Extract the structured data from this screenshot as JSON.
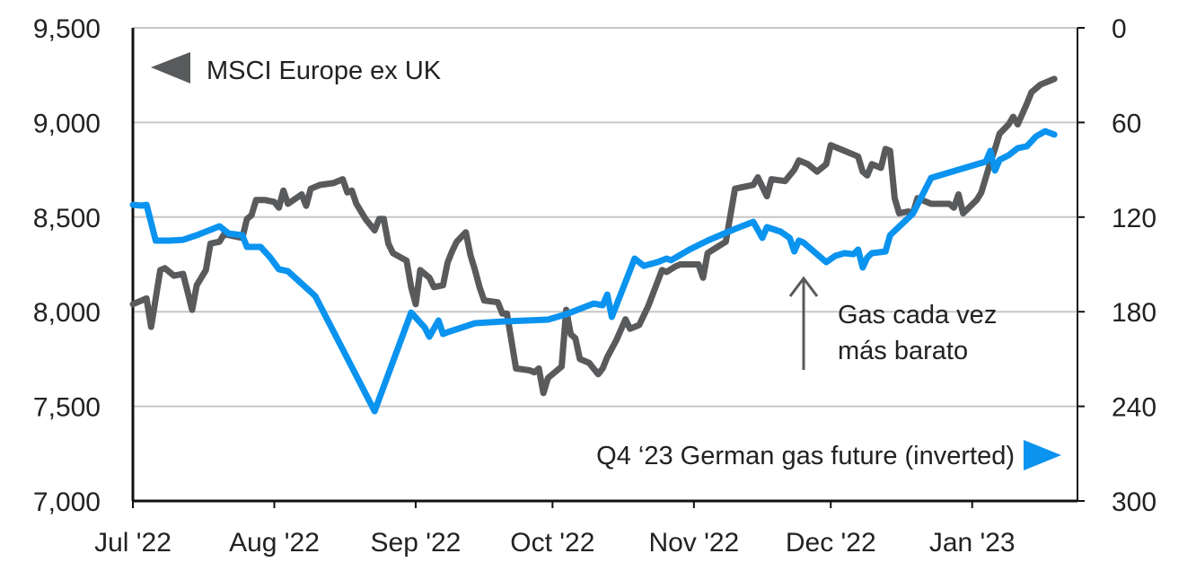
{
  "chart_data": {
    "type": "line",
    "title": "",
    "xlabel": "",
    "x_unit": "days since 1 Jul 2022",
    "x_ticks": [
      {
        "day": 0,
        "label": "Jul '22"
      },
      {
        "day": 31,
        "label": "Aug '22"
      },
      {
        "day": 62,
        "label": "Sep '22"
      },
      {
        "day": 92,
        "label": "Oct '22"
      },
      {
        "day": 123,
        "label": "Nov '22"
      },
      {
        "day": 153,
        "label": "Dec '22"
      },
      {
        "day": 184,
        "label": "Jan '23"
      }
    ],
    "xlim": [
      0,
      207
    ],
    "y_left": {
      "ylim": [
        7000,
        9500
      ],
      "ticks": [
        "7,000",
        "7,500",
        "8,000",
        "8,500",
        "9,000",
        "9,500"
      ],
      "tick_values": [
        7000,
        7500,
        8000,
        8500,
        9000,
        9500
      ]
    },
    "y_right": {
      "ylim": [
        0,
        300
      ],
      "inverted": true,
      "ticks": [
        "0",
        "60",
        "120",
        "180",
        "240",
        "300"
      ],
      "tick_values": [
        0,
        60,
        120,
        180,
        240,
        300
      ]
    },
    "grid": true,
    "series": [
      {
        "name": "MSCI Europe ex UK",
        "axis": "left",
        "color": "#595a5c",
        "points": [
          [
            0,
            8040
          ],
          [
            3,
            8070
          ],
          [
            4,
            7920
          ],
          [
            6,
            8220
          ],
          [
            7,
            8230
          ],
          [
            9,
            8190
          ],
          [
            11,
            8200
          ],
          [
            13,
            8010
          ],
          [
            14,
            8140
          ],
          [
            16,
            8220
          ],
          [
            17,
            8360
          ],
          [
            19,
            8370
          ],
          [
            20,
            8410
          ],
          [
            22,
            8400
          ],
          [
            24,
            8390
          ],
          [
            25,
            8490
          ],
          [
            26,
            8510
          ],
          [
            27,
            8590
          ],
          [
            29,
            8590
          ],
          [
            31,
            8580
          ],
          [
            32,
            8550
          ],
          [
            33,
            8640
          ],
          [
            34,
            8570
          ],
          [
            37,
            8620
          ],
          [
            38,
            8560
          ],
          [
            39,
            8650
          ],
          [
            41,
            8670
          ],
          [
            44,
            8680
          ],
          [
            46,
            8700
          ],
          [
            47,
            8630
          ],
          [
            48,
            8640
          ],
          [
            49,
            8570
          ],
          [
            51,
            8490
          ],
          [
            53,
            8430
          ],
          [
            54,
            8490
          ],
          [
            55,
            8490
          ],
          [
            56,
            8360
          ],
          [
            57,
            8310
          ],
          [
            60,
            8270
          ],
          [
            61,
            8130
          ],
          [
            62,
            8040
          ],
          [
            63,
            8220
          ],
          [
            65,
            8180
          ],
          [
            66,
            8130
          ],
          [
            68,
            8140
          ],
          [
            69,
            8260
          ],
          [
            70,
            8320
          ],
          [
            71,
            8370
          ],
          [
            73,
            8420
          ],
          [
            74,
            8300
          ],
          [
            75,
            8220
          ],
          [
            76,
            8130
          ],
          [
            77,
            8060
          ],
          [
            80,
            8050
          ],
          [
            81,
            7990
          ],
          [
            82,
            7990
          ],
          [
            84,
            7700
          ],
          [
            87,
            7690
          ],
          [
            88,
            7680
          ],
          [
            89,
            7700
          ],
          [
            90,
            7570
          ],
          [
            91,
            7650
          ],
          [
            94,
            7710
          ],
          [
            95,
            8010
          ],
          [
            96,
            7880
          ],
          [
            97,
            7860
          ],
          [
            98,
            7750
          ],
          [
            100,
            7730
          ],
          [
            102,
            7670
          ],
          [
            103,
            7700
          ],
          [
            104,
            7760
          ],
          [
            106,
            7850
          ],
          [
            108,
            7960
          ],
          [
            109,
            7910
          ],
          [
            111,
            7930
          ],
          [
            113,
            8030
          ],
          [
            116,
            8220
          ],
          [
            117,
            8210
          ],
          [
            119,
            8240
          ],
          [
            120,
            8250
          ],
          [
            123,
            8250
          ],
          [
            124,
            8250
          ],
          [
            125,
            8180
          ],
          [
            126,
            8310
          ],
          [
            128,
            8340
          ],
          [
            130,
            8370
          ],
          [
            132,
            8650
          ],
          [
            134,
            8660
          ],
          [
            136,
            8670
          ],
          [
            137,
            8710
          ],
          [
            139,
            8610
          ],
          [
            140,
            8700
          ],
          [
            143,
            8690
          ],
          [
            145,
            8750
          ],
          [
            146,
            8800
          ],
          [
            148,
            8780
          ],
          [
            150,
            8740
          ],
          [
            152,
            8780
          ],
          [
            153,
            8880
          ],
          [
            156,
            8850
          ],
          [
            157,
            8840
          ],
          [
            159,
            8820
          ],
          [
            160,
            8740
          ],
          [
            161,
            8720
          ],
          [
            162,
            8780
          ],
          [
            164,
            8760
          ],
          [
            165,
            8860
          ],
          [
            166,
            8850
          ],
          [
            167,
            8600
          ],
          [
            168,
            8520
          ],
          [
            170,
            8530
          ],
          [
            171,
            8520
          ],
          [
            172,
            8600
          ],
          [
            173,
            8590
          ],
          [
            175,
            8570
          ],
          [
            178,
            8570
          ],
          [
            179,
            8570
          ],
          [
            180,
            8550
          ],
          [
            181,
            8620
          ],
          [
            182,
            8520
          ],
          [
            185,
            8590
          ],
          [
            186,
            8630
          ],
          [
            188,
            8790
          ],
          [
            189,
            8860
          ],
          [
            190,
            8940
          ],
          [
            192,
            8990
          ],
          [
            193,
            9030
          ],
          [
            194,
            8990
          ],
          [
            196,
            9100
          ],
          [
            197,
            9160
          ],
          [
            199,
            9200
          ],
          [
            201,
            9220
          ],
          [
            202,
            9230
          ]
        ]
      },
      {
        "name": "Q4 '23 German gas future (inverted)",
        "axis": "right",
        "color": "#0a93ef",
        "points": [
          [
            0,
            112.2
          ],
          [
            2,
            112.7
          ],
          [
            3,
            112.2
          ],
          [
            5,
            134.9
          ],
          [
            8,
            134.9
          ],
          [
            11,
            134.4
          ],
          [
            14,
            131.5
          ],
          [
            19,
            125.8
          ],
          [
            21,
            130.4
          ],
          [
            24,
            131.5
          ],
          [
            25,
            138.9
          ],
          [
            28,
            138.9
          ],
          [
            30,
            145.2
          ],
          [
            32,
            153.1
          ],
          [
            34,
            154.3
          ],
          [
            39,
            167.4
          ],
          [
            40,
            170.2
          ],
          [
            53,
            243.1
          ],
          [
            61,
            180.5
          ],
          [
            64,
            190.1
          ],
          [
            65,
            195.8
          ],
          [
            67,
            185.6
          ],
          [
            68,
            194.1
          ],
          [
            69,
            193.0
          ],
          [
            75,
            187.3
          ],
          [
            81,
            186.2
          ],
          [
            91,
            185.0
          ],
          [
            95,
            181.6
          ],
          [
            101,
            174.8
          ],
          [
            103,
            175.9
          ],
          [
            104,
            169.1
          ],
          [
            105,
            183.3
          ],
          [
            106,
            175.9
          ],
          [
            110,
            146.3
          ],
          [
            112,
            150.9
          ],
          [
            115,
            148.6
          ],
          [
            117,
            146.3
          ],
          [
            118,
            147.4
          ],
          [
            122,
            140.6
          ],
          [
            126,
            134.9
          ],
          [
            132,
            127.5
          ],
          [
            136,
            123.0
          ],
          [
            138,
            133.2
          ],
          [
            139,
            126.4
          ],
          [
            142,
            129.2
          ],
          [
            144,
            133.2
          ],
          [
            145,
            141.8
          ],
          [
            146,
            134.9
          ],
          [
            147,
            136.1
          ],
          [
            152,
            148.6
          ],
          [
            154,
            144.6
          ],
          [
            156,
            142.9
          ],
          [
            158,
            143.5
          ],
          [
            159,
            140.6
          ],
          [
            160,
            152.0
          ],
          [
            161,
            145.7
          ],
          [
            162,
            142.9
          ],
          [
            165,
            141.8
          ],
          [
            166,
            131.5
          ],
          [
            171,
            117.8
          ],
          [
            173,
            106.5
          ],
          [
            175,
            95.1
          ],
          [
            187,
            84.8
          ],
          [
            188,
            78.0
          ],
          [
            189,
            90.5
          ],
          [
            190,
            83.7
          ],
          [
            192,
            80.8
          ],
          [
            194,
            76.3
          ],
          [
            196,
            75.1
          ],
          [
            198,
            68.9
          ],
          [
            200,
            65.5
          ],
          [
            202,
            67.7
          ]
        ]
      }
    ],
    "legend": [
      {
        "label": "MSCI Europe ex UK",
        "marker": "left-triangle",
        "placement": "top-left"
      },
      {
        "label": "Q4 ‘23 German gas future (inverted)",
        "marker": "right-triangle",
        "placement": "bottom-right"
      }
    ],
    "annotations": [
      {
        "lines": [
          "Gas cada vez",
          "más barato"
        ],
        "arrow": "up",
        "day": 147
      }
    ]
  }
}
